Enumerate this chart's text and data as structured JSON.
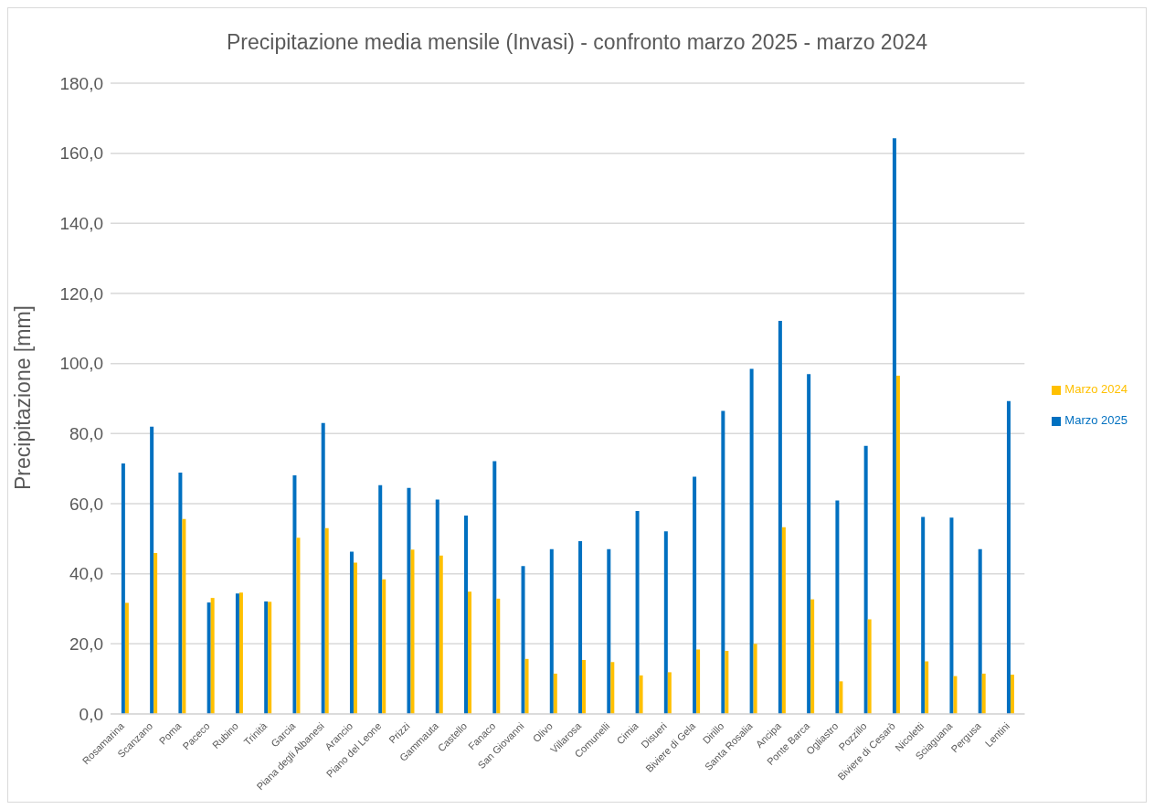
{
  "chart_data": {
    "type": "bar",
    "title": "Precipitazione media mensile (Invasi) - confronto marzo 2025 - marzo 2024",
    "ylabel": "Precipitazione [mm]",
    "categories": [
      "Rosamarina",
      "Scanzano",
      "Poma",
      "Paceco",
      "Rubino",
      "Trinità",
      "Garcia",
      "Piana degli Albanesi",
      "Arancio",
      "Piano del Leone",
      "Prizzi",
      "Gammauta",
      "Castello",
      "Fanaco",
      "San Giovanni",
      "Olivo",
      "Villarosa",
      "Comunelli",
      "Cimia",
      "Disueri",
      "Biviere di Gela",
      "Dirillo",
      "Santa Rosalia",
      "Ancipa",
      "Ponte Barca",
      "Ogliastro",
      "Pozzillo",
      "Biviere di Cesarò",
      "Nicoletti",
      "Sciaguana",
      "Pergusa",
      "Lentini"
    ],
    "series": [
      {
        "name": "Marzo 2025",
        "color": "#0070c0",
        "values": [
          71.5,
          82.0,
          68.9,
          31.8,
          34.4,
          32.1,
          68.1,
          83.0,
          46.3,
          65.3,
          64.5,
          61.2,
          56.6,
          72.1,
          42.2,
          47.0,
          49.3,
          47.0,
          57.9,
          52.1,
          67.7,
          86.5,
          98.5,
          112.2,
          97.0,
          60.9,
          76.5,
          164.3,
          56.2,
          56.0,
          47.0,
          89.3
        ]
      },
      {
        "name": "Marzo 2024",
        "color": "#ffc000",
        "values": [
          31.7,
          45.9,
          55.6,
          33.1,
          34.6,
          32.0,
          50.3,
          53.0,
          43.2,
          38.4,
          46.9,
          45.2,
          34.9,
          32.9,
          15.7,
          11.5,
          15.4,
          14.8,
          11.0,
          11.9,
          18.4,
          18.0,
          20.0,
          53.3,
          32.7,
          9.3,
          27.0,
          96.5,
          15.0,
          10.8,
          11.5,
          11.2
        ]
      }
    ],
    "ylim": [
      0,
      180
    ],
    "yticks": [
      {
        "value": 0,
        "label": "0,0"
      },
      {
        "value": 20,
        "label": "20,0"
      },
      {
        "value": 40,
        "label": "40,0"
      },
      {
        "value": 60,
        "label": "60,0"
      },
      {
        "value": 80,
        "label": "80,0"
      },
      {
        "value": 100,
        "label": "100,0"
      },
      {
        "value": 120,
        "label": "120,0"
      },
      {
        "value": 140,
        "label": "140,0"
      },
      {
        "value": 160,
        "label": "160,0"
      },
      {
        "value": 180,
        "label": "180,0"
      }
    ],
    "grid": "y",
    "legend": "right"
  }
}
